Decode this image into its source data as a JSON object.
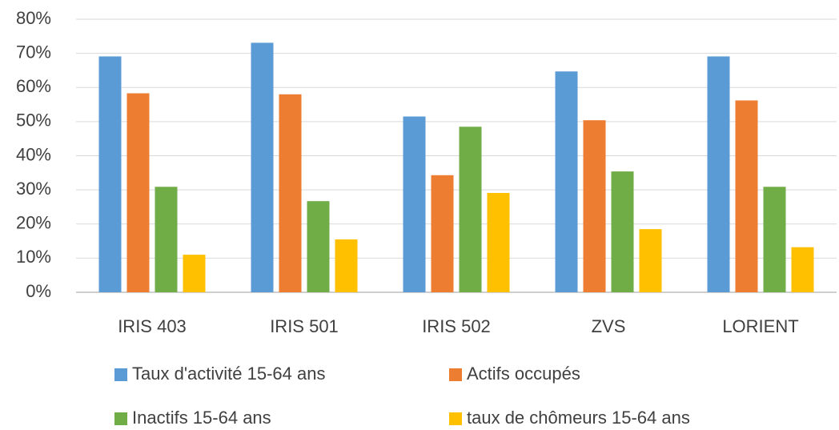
{
  "chart_data": {
    "type": "bar",
    "categories": [
      "IRIS 403",
      "IRIS 501",
      "IRIS 502",
      "ZVS",
      "LORIENT"
    ],
    "series": [
      {
        "name": "Taux d'activité 15-64 ans",
        "color": "#5b9bd5",
        "values": [
          69.1,
          73.1,
          51.5,
          64.7,
          69.1
        ]
      },
      {
        "name": "Actifs occupés",
        "color": "#ed7d31",
        "values": [
          58.3,
          58.0,
          34.3,
          50.4,
          56.2
        ]
      },
      {
        "name": "Inactifs 15-64 ans",
        "color": "#70ad47",
        "values": [
          30.9,
          26.7,
          48.5,
          35.4,
          30.9
        ]
      },
      {
        "name": "taux de chômeurs 15-64 ans",
        "color": "#ffc000",
        "values": [
          11.0,
          15.5,
          29.1,
          18.5,
          13.2
        ]
      }
    ],
    "ylim": [
      0,
      80
    ],
    "yticks": [
      {
        "value": 0,
        "label": "0%"
      },
      {
        "value": 10,
        "label": "10%"
      },
      {
        "value": 20,
        "label": "20%"
      },
      {
        "value": 30,
        "label": "30%"
      },
      {
        "value": 40,
        "label": "40%"
      },
      {
        "value": 50,
        "label": "50%"
      },
      {
        "value": 60,
        "label": "60%"
      },
      {
        "value": 70,
        "label": "70%"
      },
      {
        "value": 80,
        "label": "80%"
      }
    ],
    "grid": true,
    "legend": "bottom"
  }
}
